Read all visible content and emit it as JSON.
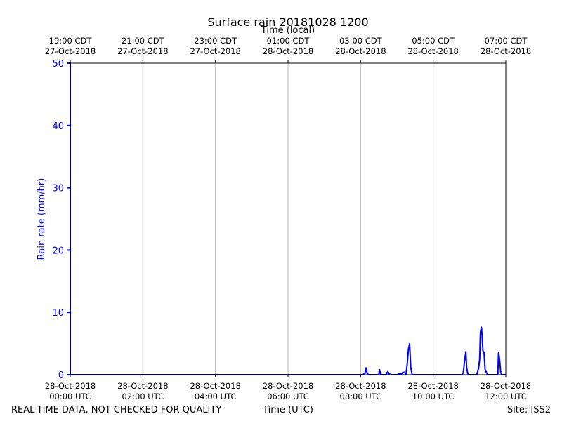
{
  "chart_data": {
    "type": "line",
    "title": "Surface rain 20181028 1200",
    "top_axis_label": "Time (local)",
    "xlabel": "Time (UTC)",
    "ylabel": "Rain rate (mm/hr)",
    "ylim": [
      0,
      50
    ],
    "xlim_hours_utc": [
      0,
      12
    ],
    "grid": "vertical",
    "line_color": "#0000ff",
    "y_ticks": [
      0,
      10,
      20,
      30,
      40,
      50
    ],
    "x_ticks_bottom": [
      {
        "line1": "28-Oct-2018",
        "line2": "00:00 UTC"
      },
      {
        "line1": "28-Oct-2018",
        "line2": "02:00 UTC"
      },
      {
        "line1": "28-Oct-2018",
        "line2": "04:00 UTC"
      },
      {
        "line1": "28-Oct-2018",
        "line2": "06:00 UTC"
      },
      {
        "line1": "28-Oct-2018",
        "line2": "08:00 UTC"
      },
      {
        "line1": "28-Oct-2018",
        "line2": "10:00 UTC"
      },
      {
        "line1": "28-Oct-2018",
        "line2": "12:00 UTC"
      }
    ],
    "x_ticks_top": [
      {
        "line1": "19:00 CDT",
        "line2": "27-Oct-2018"
      },
      {
        "line1": "21:00 CDT",
        "line2": "27-Oct-2018"
      },
      {
        "line1": "23:00 CDT",
        "line2": "27-Oct-2018"
      },
      {
        "line1": "01:00 CDT",
        "line2": "28-Oct-2018"
      },
      {
        "line1": "03:00 CDT",
        "line2": "28-Oct-2018"
      },
      {
        "line1": "05:00 CDT",
        "line2": "28-Oct-2018"
      },
      {
        "line1": "07:00 CDT",
        "line2": "28-Oct-2018"
      }
    ],
    "series": [
      {
        "x": [
          0.0,
          0.0,
          0.0,
          8.05,
          8.12,
          8.15,
          8.18,
          8.22,
          8.5,
          8.52,
          8.55,
          8.6,
          8.7,
          8.75,
          8.78,
          8.82,
          8.88,
          9.0,
          9.05,
          9.08,
          9.12,
          9.15,
          9.2,
          9.25,
          9.28,
          9.32,
          9.35,
          9.38,
          9.42,
          9.46,
          9.5,
          10.0,
          10.8,
          10.83,
          10.87,
          10.9,
          10.92,
          10.95,
          10.98,
          11.0,
          11.05,
          11.1,
          11.2,
          11.25,
          11.28,
          11.3,
          11.33,
          11.35,
          11.37,
          11.4,
          11.43,
          11.5,
          11.7,
          11.78,
          11.8,
          11.83,
          11.86,
          11.9,
          12.0
        ],
        "y": [
          0,
          50,
          0,
          0,
          0.2,
          1.1,
          0.2,
          0,
          0,
          0.8,
          0.1,
          0,
          0,
          0.5,
          0.2,
          0,
          0,
          0,
          0.1,
          0.2,
          0.1,
          0.3,
          0.4,
          0.1,
          1.5,
          4.2,
          5.0,
          1.2,
          0,
          0,
          0,
          0,
          0,
          0.4,
          2.5,
          3.7,
          1.2,
          0.2,
          0,
          0,
          0,
          0,
          0,
          1.0,
          2.5,
          6.8,
          7.6,
          6.0,
          3.8,
          3.6,
          0.8,
          0,
          0,
          0,
          3.6,
          2.4,
          0.3,
          0,
          0
        ]
      }
    ]
  },
  "footer": {
    "left": "REAL-TIME DATA, NOT CHECKED FOR QUALITY",
    "center": "Time (UTC)",
    "right": "Site: ISS2"
  }
}
